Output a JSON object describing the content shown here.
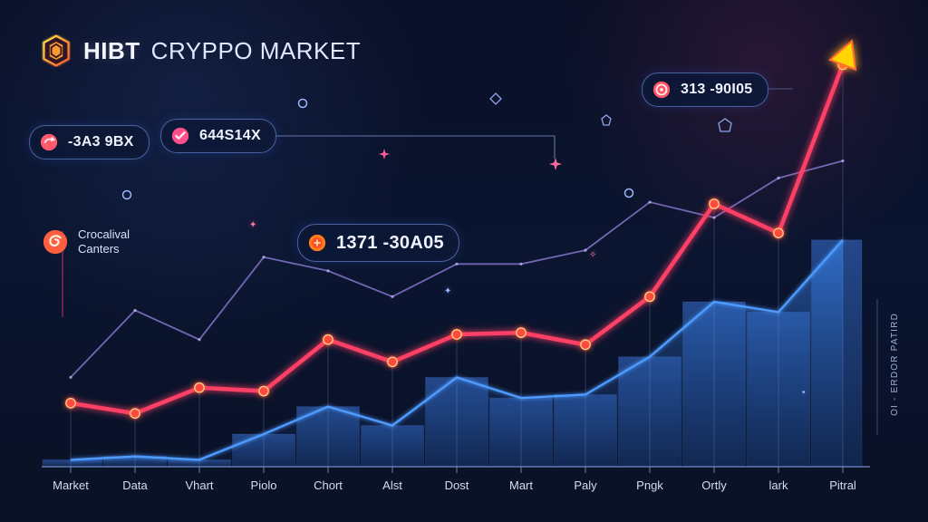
{
  "header": {
    "brand": "HIBT",
    "title": "CRYPPO MARKET"
  },
  "callouts": [
    {
      "text": "-3A3 9BX"
    },
    {
      "text": "644S14X"
    },
    {
      "text": "1371 -30A05"
    },
    {
      "text": "313 -90I05"
    }
  ],
  "side_label": {
    "line1": "Crocalival",
    "line2": "Canters"
  },
  "right_axis_label": "OI - ERDOR PATIRD",
  "colors": {
    "background": "#0b1530",
    "accent_red": "#ff3f66",
    "accent_yellow": "#ffd400",
    "accent_blue": "#4d9bff",
    "accent_purple": "#8e7ed6"
  },
  "icons": {
    "logo": "hexagon-icon",
    "callout_1": "circle-arrow-icon",
    "callout_2": "checkmark-icon",
    "callout_3": "coin-icon",
    "callout_4": "target-icon",
    "side": "spiral-icon"
  },
  "chart_data": {
    "type": "line",
    "categories": [
      "Market",
      "Data",
      "Vhart",
      "Piolo",
      "Chort",
      "Alst",
      "Dost",
      "Mart",
      "Paly",
      "Pngk",
      "Ortly",
      "lark",
      "Pitral"
    ],
    "series": [
      {
        "values": [
          37,
          31,
          46,
          44,
          74,
          61,
          77,
          78,
          71,
          99,
          153,
          136,
          234
        ]
      },
      {
        "values": [
          4,
          6,
          4,
          19,
          35,
          24,
          52,
          40,
          42,
          64,
          96,
          90,
          132
        ]
      },
      {
        "values": [
          52,
          91,
          74,
          122,
          114,
          99,
          118,
          118,
          126,
          154,
          145,
          168,
          178
        ]
      }
    ],
    "ylim": [
      0,
      240
    ]
  }
}
